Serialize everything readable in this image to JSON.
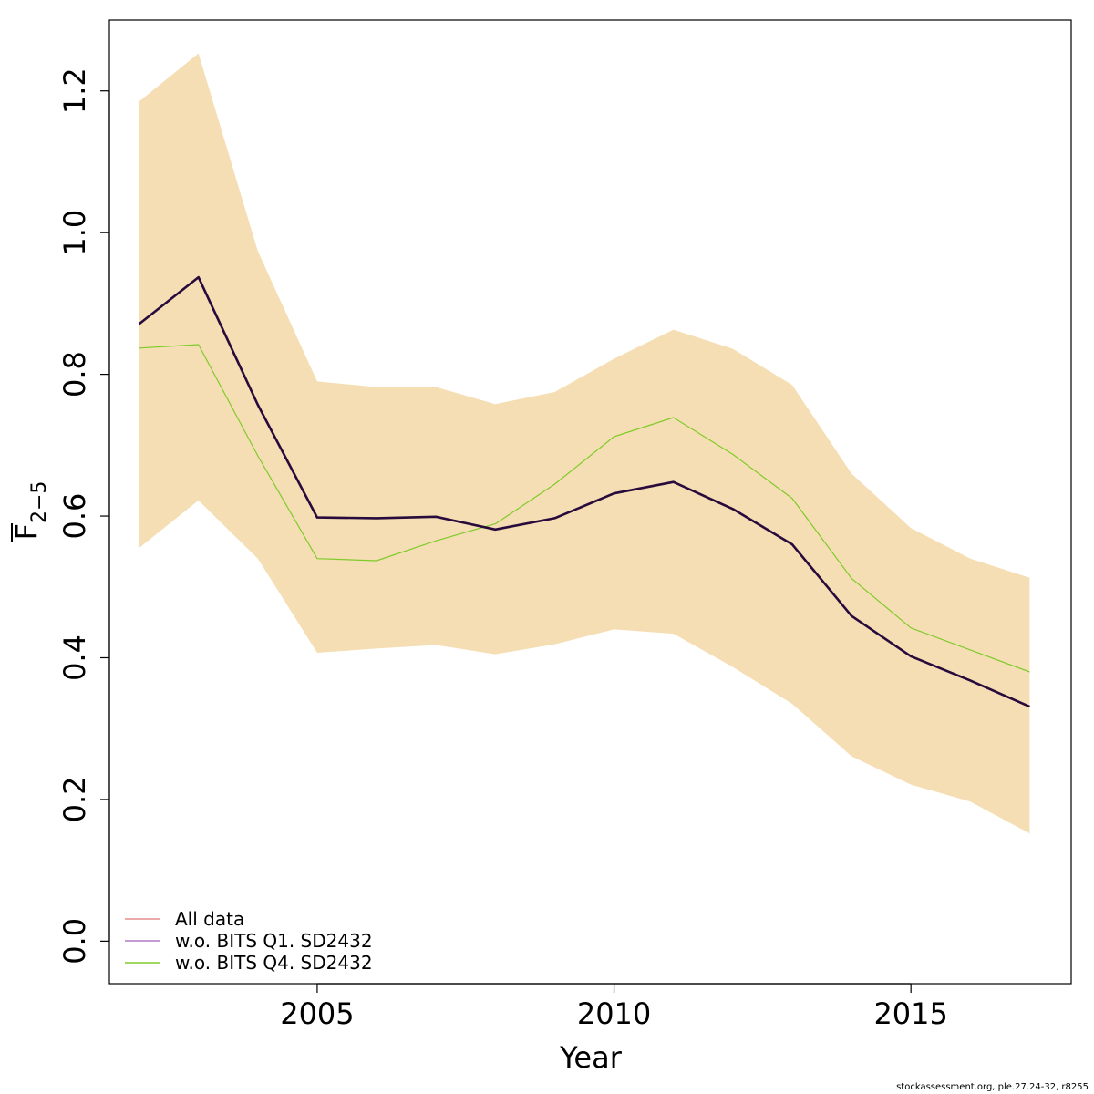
{
  "chart_data": {
    "type": "line",
    "xlabel": "Year",
    "ylabel": {
      "main": "F",
      "subscript": "2−5"
    },
    "xlim": [
      2001.5,
      2017.7
    ],
    "ylim": [
      -0.06,
      1.3
    ],
    "x_ticks": [
      {
        "value": 2005,
        "label": "2005"
      },
      {
        "value": 2010,
        "label": "2010"
      },
      {
        "value": 2015,
        "label": "2015"
      }
    ],
    "y_ticks": [
      {
        "value": 0.0,
        "label": "0.0"
      },
      {
        "value": 0.2,
        "label": "0.2"
      },
      {
        "value": 0.4,
        "label": "0.4"
      },
      {
        "value": 0.6,
        "label": "0.6"
      },
      {
        "value": 0.8,
        "label": "0.8"
      },
      {
        "value": 1.0,
        "label": "1.0"
      },
      {
        "value": 1.2,
        "label": "1.2"
      }
    ],
    "x": [
      2002,
      2003,
      2004,
      2005,
      2006,
      2007,
      2008,
      2009,
      2010,
      2011,
      2012,
      2013,
      2014,
      2015,
      2016,
      2017
    ],
    "confidence_band": {
      "color": "#F5DEB3",
      "upper": [
        1.185,
        1.253,
        0.974,
        0.79,
        0.782,
        0.782,
        0.758,
        0.775,
        0.822,
        0.863,
        0.836,
        0.785,
        0.66,
        0.583,
        0.54,
        0.513
      ],
      "lower": [
        0.555,
        0.622,
        0.54,
        0.407,
        0.413,
        0.418,
        0.405,
        0.419,
        0.44,
        0.434,
        0.387,
        0.335,
        0.261,
        0.221,
        0.197,
        0.152
      ]
    },
    "series": [
      {
        "name": "All data",
        "color": "#E78C8C",
        "values": [
          0.871,
          0.937,
          0.757,
          0.598,
          0.597,
          0.599,
          0.581,
          0.597,
          0.632,
          0.648,
          0.61,
          0.56,
          0.459,
          0.402,
          0.368,
          0.331
        ]
      },
      {
        "name": "w.o. BITS Q1. SD2432",
        "color": "#280B3C",
        "values": [
          0.871,
          0.937,
          0.757,
          0.598,
          0.597,
          0.599,
          0.581,
          0.597,
          0.632,
          0.648,
          0.61,
          0.56,
          0.459,
          0.402,
          0.368,
          0.331
        ]
      },
      {
        "name": "w.o. BITS Q4. SD2432",
        "color": "#7FCB2A",
        "values": [
          0.837,
          0.842,
          0.685,
          0.54,
          0.537,
          0.565,
          0.589,
          0.645,
          0.712,
          0.739,
          0.687,
          0.625,
          0.512,
          0.442,
          0.411,
          0.38
        ]
      }
    ],
    "legend": {
      "position": "bottom-left",
      "entries": [
        {
          "label": "All data",
          "color": "#E78C8C"
        },
        {
          "label": "w.o. BITS Q1. SD2432",
          "color": "#B07CC6"
        },
        {
          "label": "w.o. BITS Q4. SD2432",
          "color": "#7FCB2A"
        }
      ]
    }
  },
  "footer": {
    "text": "stockassessment.org, ple.27.24-32, r8255"
  }
}
